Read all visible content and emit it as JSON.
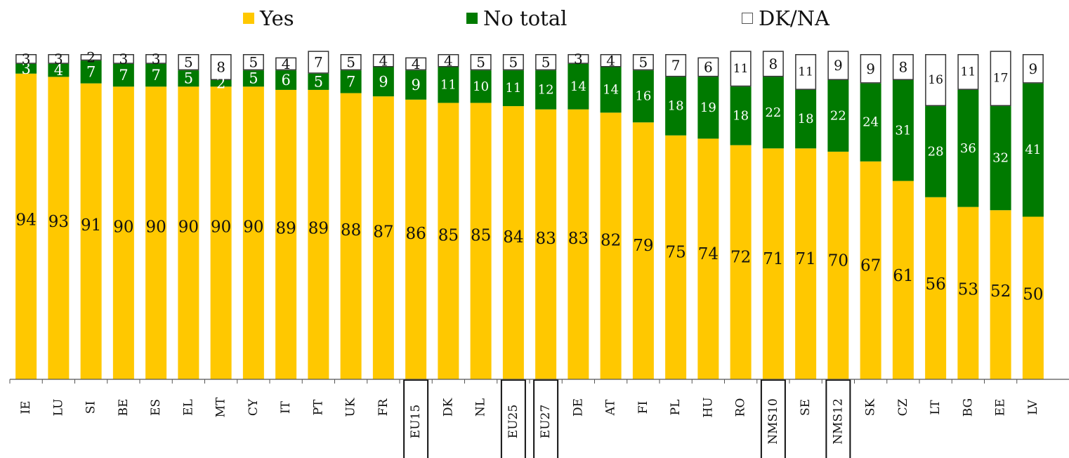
{
  "legend": {
    "yes": {
      "label": "Yes",
      "color": "#FFC800"
    },
    "no": {
      "label": "No total",
      "color": "#007A00"
    },
    "dk": {
      "label": "DK/NA",
      "color": "#FFFFFF"
    }
  },
  "chart_data": {
    "type": "bar",
    "stacked": true,
    "orientation": "vertical",
    "ylim": [
      0,
      100
    ],
    "grid": false,
    "legend_position": "top",
    "categories": [
      "IE",
      "LU",
      "SI",
      "BE",
      "ES",
      "EL",
      "MT",
      "CY",
      "IT",
      "PT",
      "UK",
      "FR",
      "EU15",
      "DK",
      "NL",
      "EU25",
      "EU27",
      "DE",
      "AT",
      "FI",
      "PL",
      "HU",
      "RO",
      "NMS10",
      "SE",
      "NMS12",
      "SK",
      "CZ",
      "LT",
      "BG",
      "EE",
      "LV"
    ],
    "highlighted_categories": [
      "EU15",
      "EU25",
      "EU27",
      "NMS10",
      "NMS12"
    ],
    "series": [
      {
        "name": "Yes",
        "color": "#FFC800",
        "values": [
          94,
          93,
          91,
          90,
          90,
          90,
          90,
          90,
          89,
          89,
          88,
          87,
          86,
          85,
          85,
          84,
          83,
          83,
          82,
          79,
          75,
          74,
          72,
          71,
          71,
          70,
          67,
          61,
          56,
          53,
          52,
          50
        ]
      },
      {
        "name": "No total",
        "color": "#007A00",
        "values": [
          3,
          4,
          7,
          7,
          7,
          5,
          2,
          5,
          6,
          5,
          7,
          9,
          9,
          11,
          10,
          11,
          12,
          14,
          14,
          16,
          18,
          19,
          18,
          22,
          18,
          22,
          24,
          31,
          28,
          36,
          32,
          41
        ]
      },
      {
        "name": "DK/NA",
        "color": "#FFFFFF",
        "values": [
          3,
          3,
          2,
          3,
          3,
          5,
          8,
          5,
          4,
          7,
          5,
          4,
          4,
          4,
          5,
          5,
          5,
          3,
          4,
          5,
          7,
          6,
          11,
          8,
          11,
          9,
          9,
          8,
          16,
          11,
          17,
          9
        ]
      }
    ]
  }
}
